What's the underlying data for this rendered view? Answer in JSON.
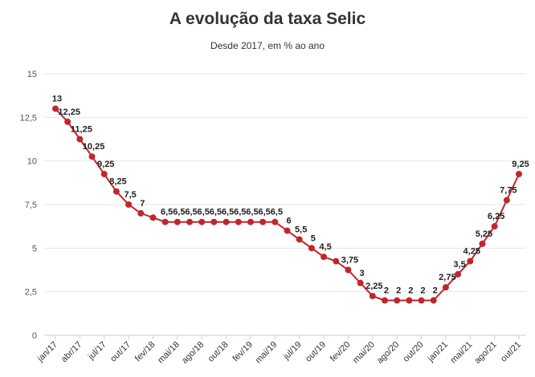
{
  "chart_data": {
    "type": "line",
    "title": "A evolução da taxa Selic",
    "subtitle": "Desde 2017, em % ao ano",
    "xlabel": "",
    "ylabel": "",
    "ylim": [
      0,
      15
    ],
    "yticks": [
      "0",
      "2,5",
      "5",
      "7,5",
      "10",
      "12,5",
      "15"
    ],
    "ytick_values": [
      0,
      2.5,
      5,
      7.5,
      10,
      12.5,
      15
    ],
    "xtick_labels": [
      "jan/17",
      "abr/17",
      "jul/17",
      "out/17",
      "fev/18",
      "mai/18",
      "ago/18",
      "out/18",
      "fev/19",
      "mai/19",
      "jul/19",
      "out/19",
      "fev/20",
      "mai/20",
      "ago/20",
      "out/20",
      "jan/21",
      "mai/21",
      "ago/21",
      "out/21"
    ],
    "grid": "horizontal",
    "series": [
      {
        "values": [
          13,
          12.25,
          11.25,
          10.25,
          9.25,
          8.25,
          7.5,
          7,
          6.75,
          6.5,
          6.5,
          6.5,
          6.5,
          6.5,
          6.5,
          6.5,
          6.5,
          6.5,
          6.5,
          6,
          5.5,
          5,
          4.5,
          4.25,
          3.75,
          3,
          2.25,
          2,
          2,
          2,
          2,
          2,
          2.75,
          3.5,
          4.25,
          5.25,
          6.25,
          7.75,
          9.25
        ],
        "labels": [
          "13",
          "12,25",
          "11,25",
          "10,25",
          "9,25",
          "8,25",
          "7,5",
          "7",
          "",
          "6,5",
          "6,5",
          "6,5",
          "6,5",
          "6,5",
          "6,5",
          "6,5",
          "6,5",
          "6,5",
          "6,5",
          "6",
          "5,5",
          "5",
          "4,5",
          "",
          "3,75",
          "3",
          "2,25",
          "2",
          "2",
          "2",
          "2",
          "2",
          "2,75",
          "3,5",
          "4,25",
          "5,25",
          "6,25",
          "7,75",
          "9,25"
        ]
      }
    ],
    "colors": {
      "line": "#c0262d",
      "grid": "#e5e5e5",
      "axis": "#cccccc"
    }
  }
}
